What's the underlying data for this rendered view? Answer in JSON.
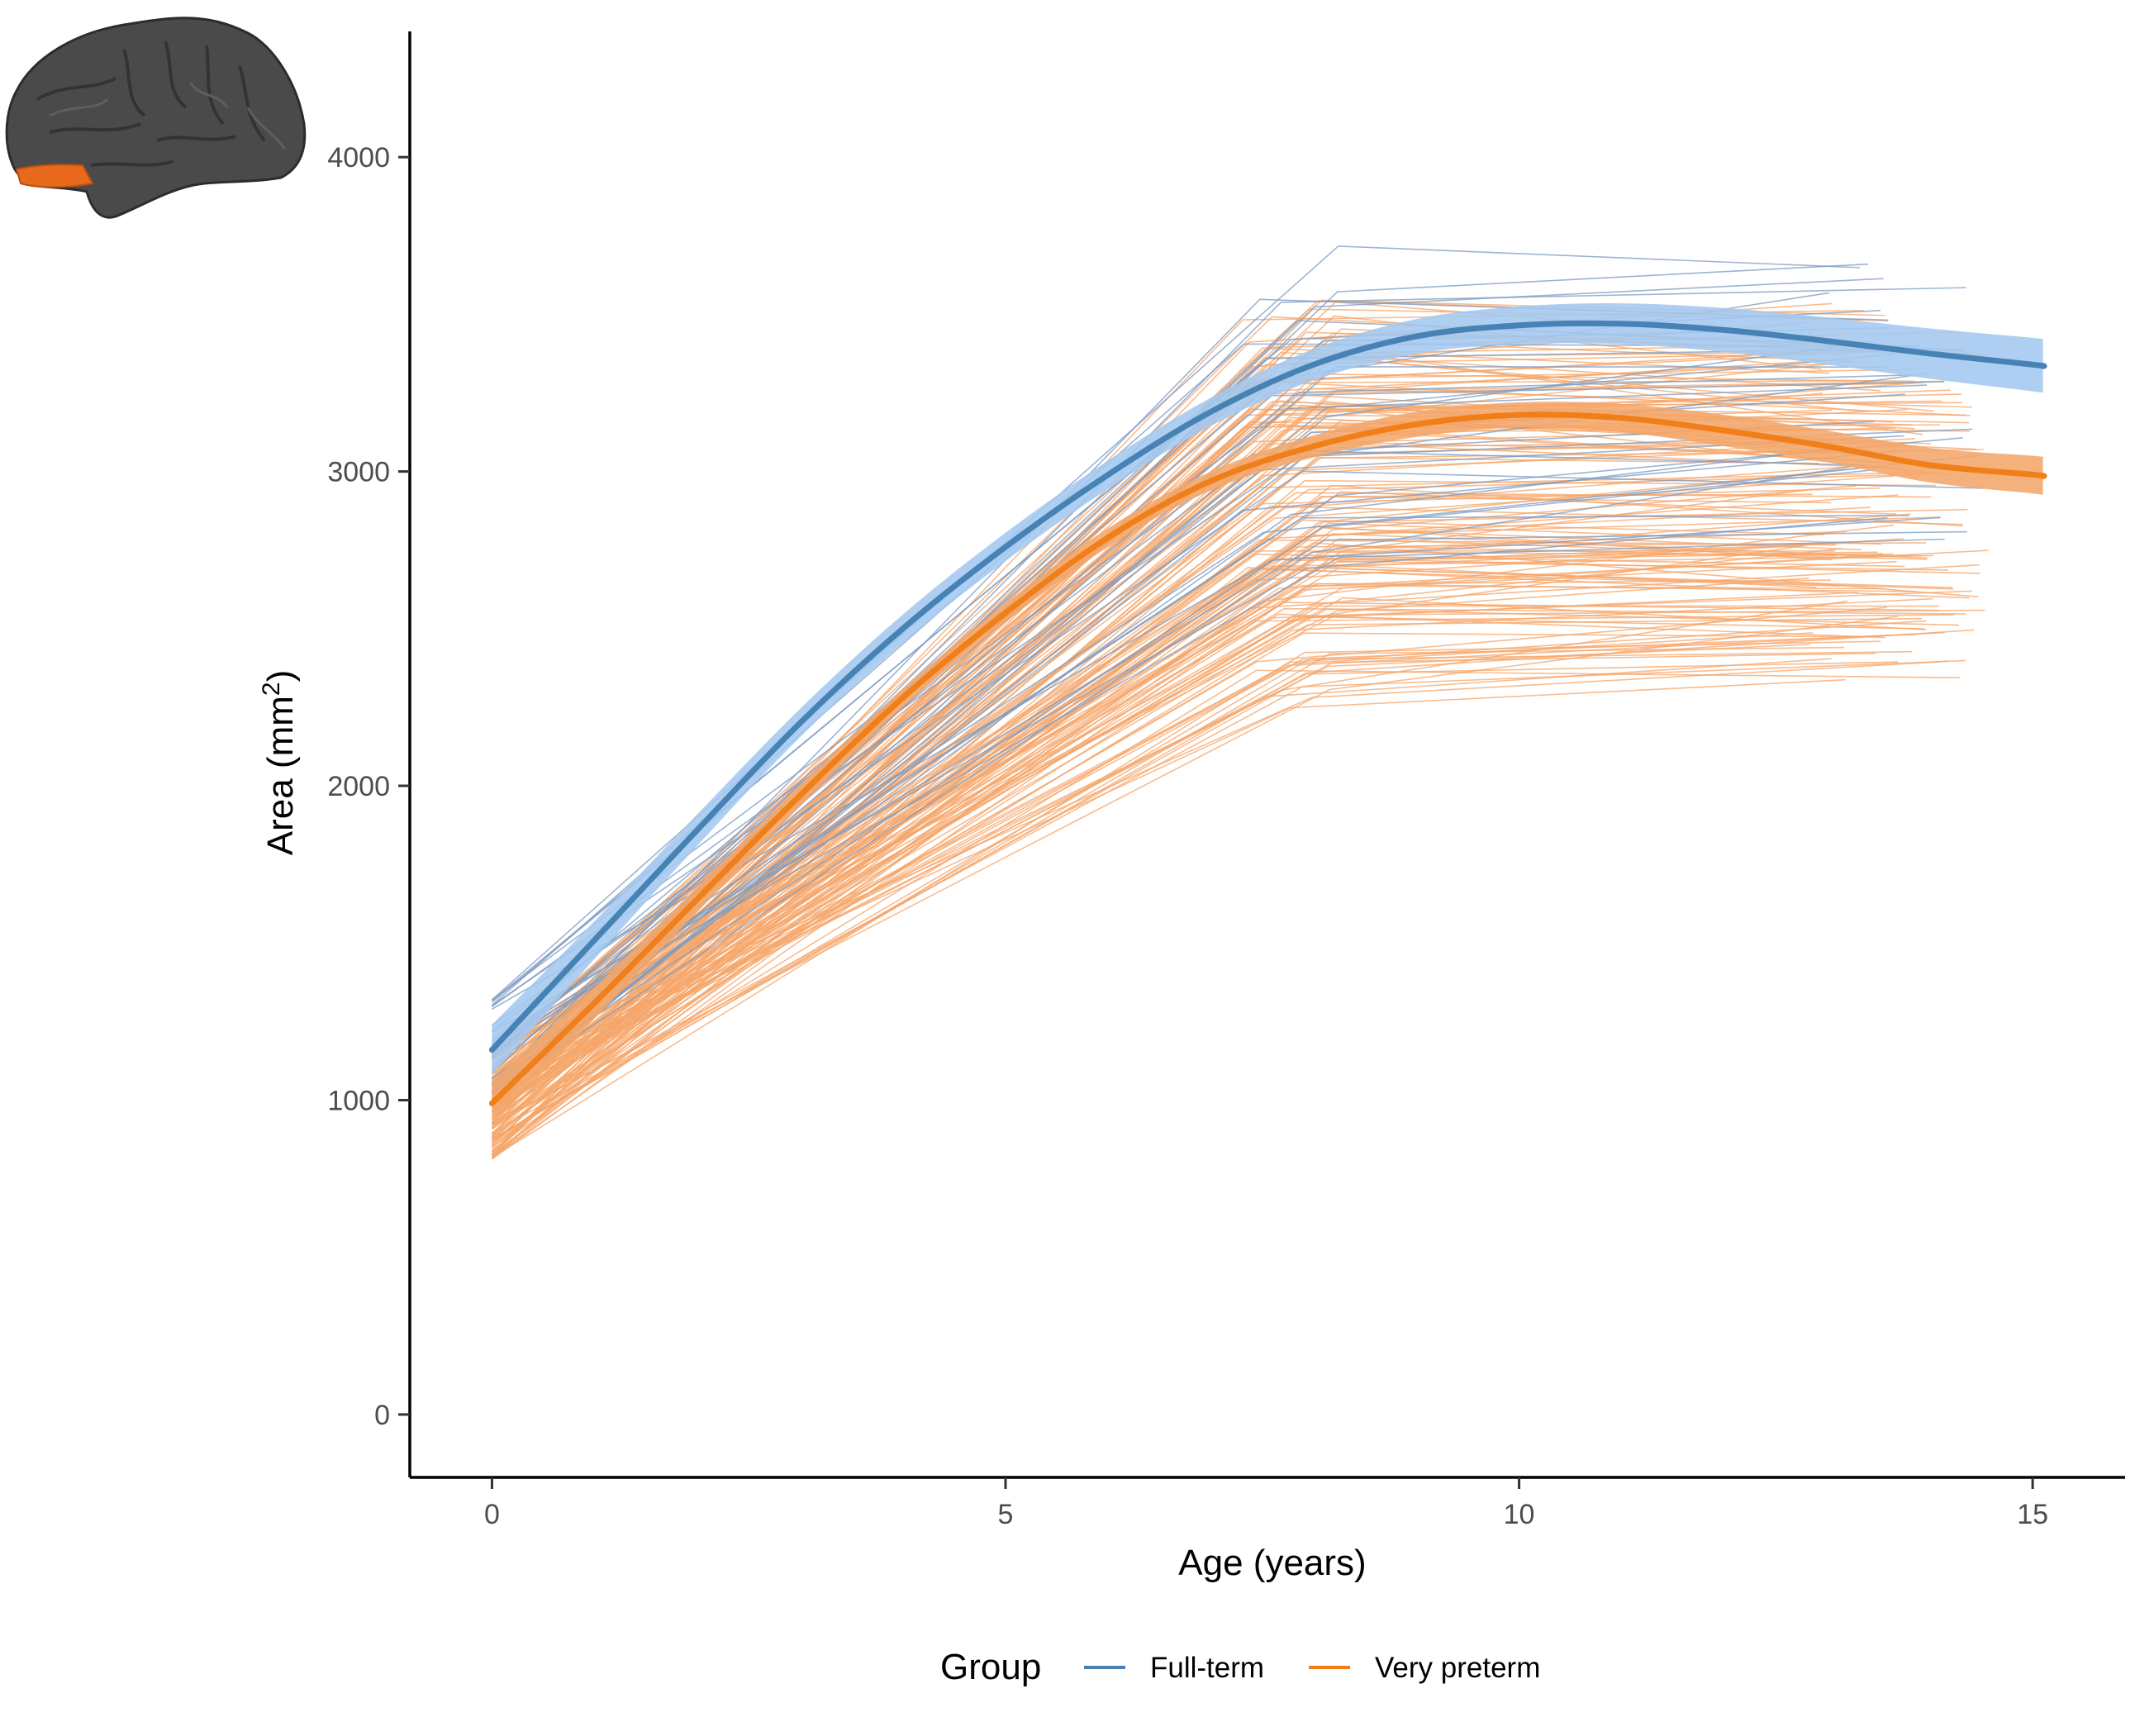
{
  "chart_data": {
    "type": "line",
    "title": "",
    "xlabel": "Age (years)",
    "ylabel_main": "Area (mm",
    "ylabel_sup": "2",
    "ylabel_close": ")",
    "xlim": [
      -0.8,
      15.9
    ],
    "ylim": [
      -200,
      4400
    ],
    "x_ticks": [
      0,
      5,
      10,
      15
    ],
    "y_ticks": [
      0,
      1000,
      2000,
      3000,
      4000
    ],
    "x_tick_labels": [
      "0",
      "5",
      "10",
      "15"
    ],
    "y_tick_labels": [
      "0",
      "1000",
      "2000",
      "3000",
      "4000"
    ],
    "grid": false,
    "legend": {
      "title": "Group",
      "position": "bottom"
    },
    "colors": {
      "full_term": "#4682B4",
      "full_term_band": "#A3C8F0",
      "very_preterm": "#F07F1A",
      "very_preterm_band": "#F4A66A",
      "full_term_individual": "#7C9BC2",
      "very_preterm_individual": "#F5A56A"
    },
    "series": [
      {
        "name": "Full-term",
        "key": "full_term",
        "x": [
          0,
          1,
          2,
          3,
          4,
          5,
          6,
          7,
          8,
          9,
          10,
          11,
          12,
          13,
          14,
          15,
          15.1
        ],
        "y": [
          1160,
          1510,
          1860,
          2200,
          2500,
          2760,
          2990,
          3190,
          3340,
          3430,
          3465,
          3470,
          3450,
          3415,
          3375,
          3340,
          3335
        ],
        "ci_half_width": [
          80,
          60,
          50,
          45,
          45,
          45,
          45,
          45,
          50,
          55,
          60,
          65,
          70,
          75,
          80,
          85,
          85
        ]
      },
      {
        "name": "Very preterm",
        "key": "very_preterm",
        "x": [
          0,
          1,
          2,
          3,
          4,
          5,
          6,
          7,
          8,
          9,
          10,
          11,
          12,
          13,
          14,
          15,
          15.1
        ],
        "y": [
          990,
          1310,
          1640,
          1970,
          2280,
          2550,
          2790,
          2970,
          3080,
          3150,
          3180,
          3170,
          3130,
          3080,
          3020,
          2990,
          2985
        ],
        "ci_half_width": [
          70,
          50,
          40,
          35,
          30,
          30,
          30,
          30,
          35,
          40,
          40,
          45,
          50,
          50,
          55,
          60,
          60
        ]
      }
    ],
    "individual_trajectories": {
      "full_term_count": 35,
      "very_preterm_count": 160,
      "description_free": true
    }
  }
}
